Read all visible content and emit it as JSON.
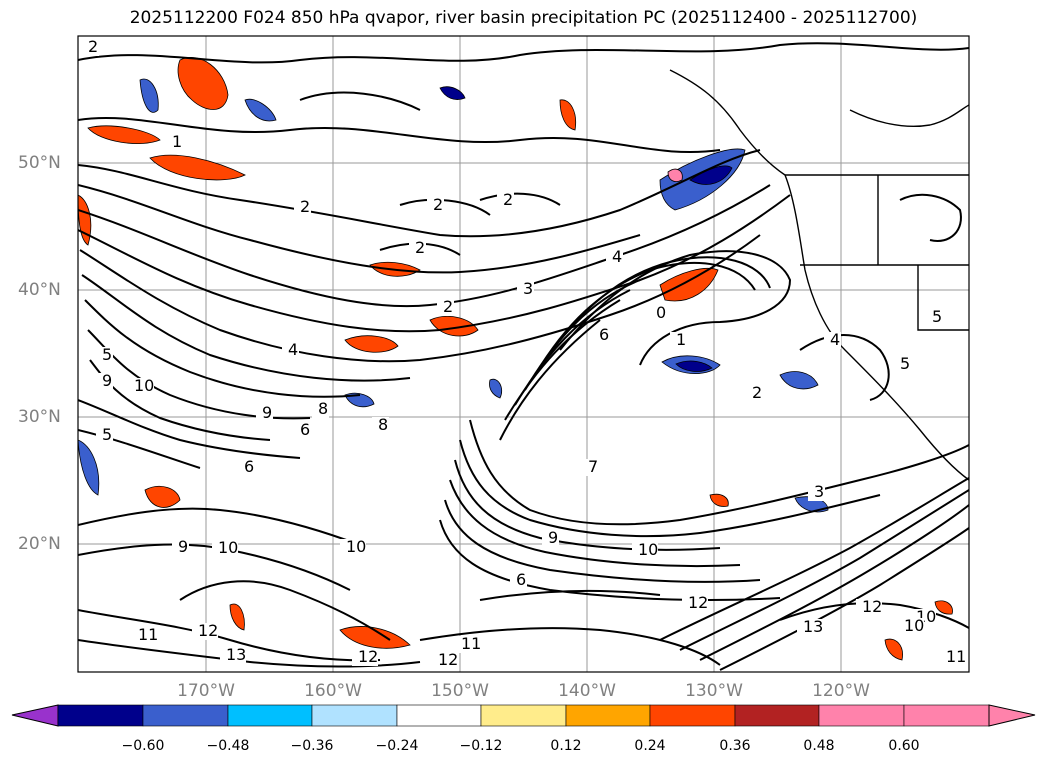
{
  "title": "2025112200 F024 850 hPa qvapor, river basin precipitation PC (2025112400 - 2025112700)",
  "map": {
    "lat_labels": [
      "50°N",
      "40°N",
      "30°N",
      "20°N"
    ],
    "lon_labels": [
      "170°W",
      "160°W",
      "150°W",
      "140°W",
      "130°W",
      "120°W"
    ],
    "contour_labels": [
      "2",
      "1",
      "2",
      "2",
      "2",
      "2",
      "3",
      "4",
      "2",
      "0",
      "1",
      "6",
      "4",
      "5",
      "9",
      "10",
      "8",
      "9",
      "6",
      "8",
      "7",
      "6",
      "9",
      "10",
      "10",
      "9",
      "6",
      "10",
      "12",
      "11",
      "12",
      "13",
      "12",
      "11",
      "12",
      "10",
      "13",
      "12",
      "10",
      "11",
      "5",
      "3",
      "2",
      "5",
      "4",
      "5"
    ]
  },
  "colorbar": {
    "tick_labels": [
      "−0.60",
      "−0.48",
      "−0.36",
      "−0.24",
      "−0.12",
      "0.12",
      "0.24",
      "0.36",
      "0.48",
      "0.60"
    ],
    "colors": [
      "#9932cc",
      "#00008b",
      "#3a5fcd",
      "#00bfff",
      "#b0e2ff",
      "#ffffff",
      "#ffec8b",
      "#ffa500",
      "#ff4500",
      "#b22222",
      "#ff82ab"
    ]
  }
}
